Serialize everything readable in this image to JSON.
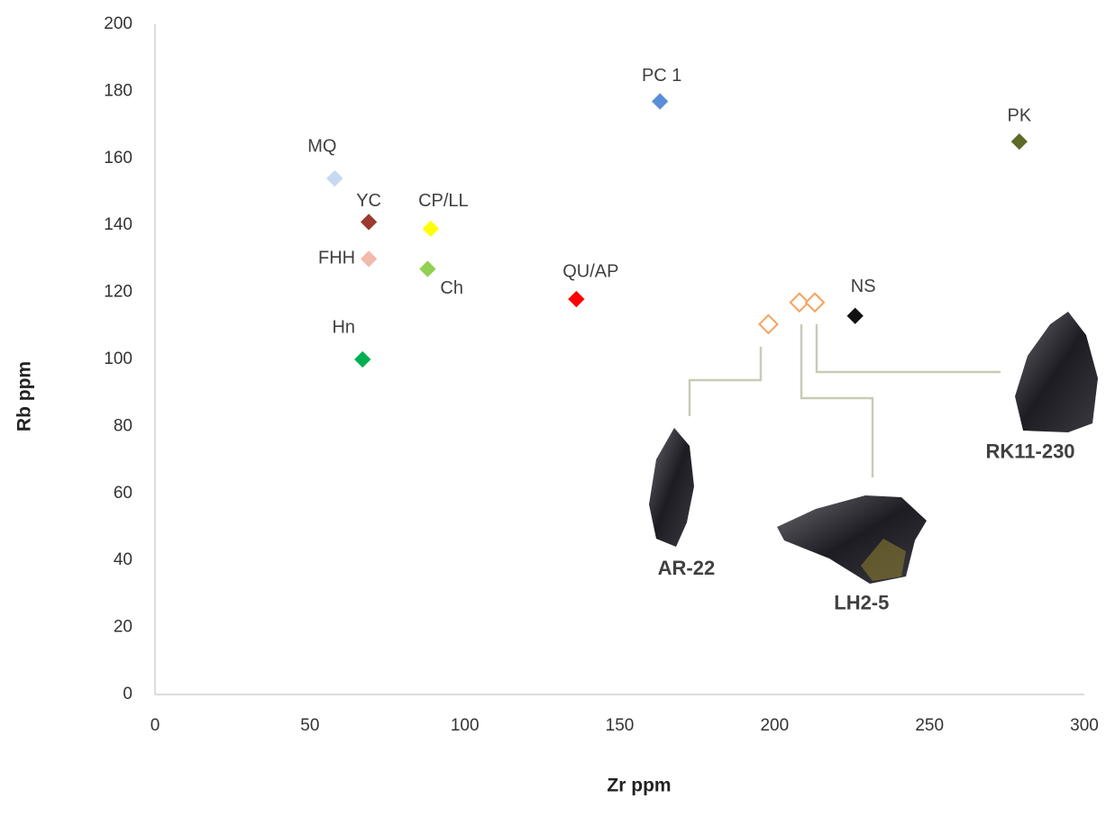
{
  "chart_data": {
    "type": "scatter",
    "xlabel": "Zr ppm",
    "ylabel": "Rb ppm",
    "xlim": [
      0,
      300
    ],
    "ylim": [
      0,
      200
    ],
    "xticks": [
      0,
      50,
      100,
      150,
      200,
      250,
      300
    ],
    "yticks": [
      0,
      20,
      40,
      60,
      80,
      100,
      120,
      140,
      160,
      180,
      200
    ],
    "grid": false,
    "series": [
      {
        "name": "MQ",
        "color": "#c6d9f0",
        "x": [
          58
        ],
        "values": [
          154
        ]
      },
      {
        "name": "YC",
        "color": "#9b3b2e",
        "x": [
          69
        ],
        "values": [
          141
        ]
      },
      {
        "name": "FHH",
        "color": "#f2b9ad",
        "x": [
          69
        ],
        "values": [
          130
        ]
      },
      {
        "name": "CP/LL",
        "color": "#ffff00",
        "x": [
          89
        ],
        "values": [
          139
        ]
      },
      {
        "name": "Ch",
        "color": "#92d050",
        "x": [
          88
        ],
        "values": [
          127
        ]
      },
      {
        "name": "Hn",
        "color": "#00b050",
        "x": [
          67
        ],
        "values": [
          100
        ]
      },
      {
        "name": "QU/AP",
        "color": "#ff0000",
        "x": [
          136
        ],
        "values": [
          118
        ]
      },
      {
        "name": "PC 1",
        "color": "#5b8ed8",
        "x": [
          163
        ],
        "values": [
          177
        ]
      },
      {
        "name": "PK",
        "color": "#5e6a28",
        "x": [
          279
        ],
        "values": [
          165
        ]
      },
      {
        "name": "NS",
        "color": "#111111",
        "x": [
          226
        ],
        "values": [
          113
        ]
      },
      {
        "name": "AR-22",
        "color": "#f4a460",
        "hollow": true,
        "x": [
          198
        ],
        "values": [
          110.5
        ]
      },
      {
        "name": "LH2-5",
        "color": "#f4a460",
        "hollow": true,
        "x": [
          208
        ],
        "values": [
          117
        ]
      },
      {
        "name": "RK11-230",
        "color": "#f4a460",
        "hollow": true,
        "x": [
          213
        ],
        "values": [
          117
        ]
      }
    ]
  }
}
